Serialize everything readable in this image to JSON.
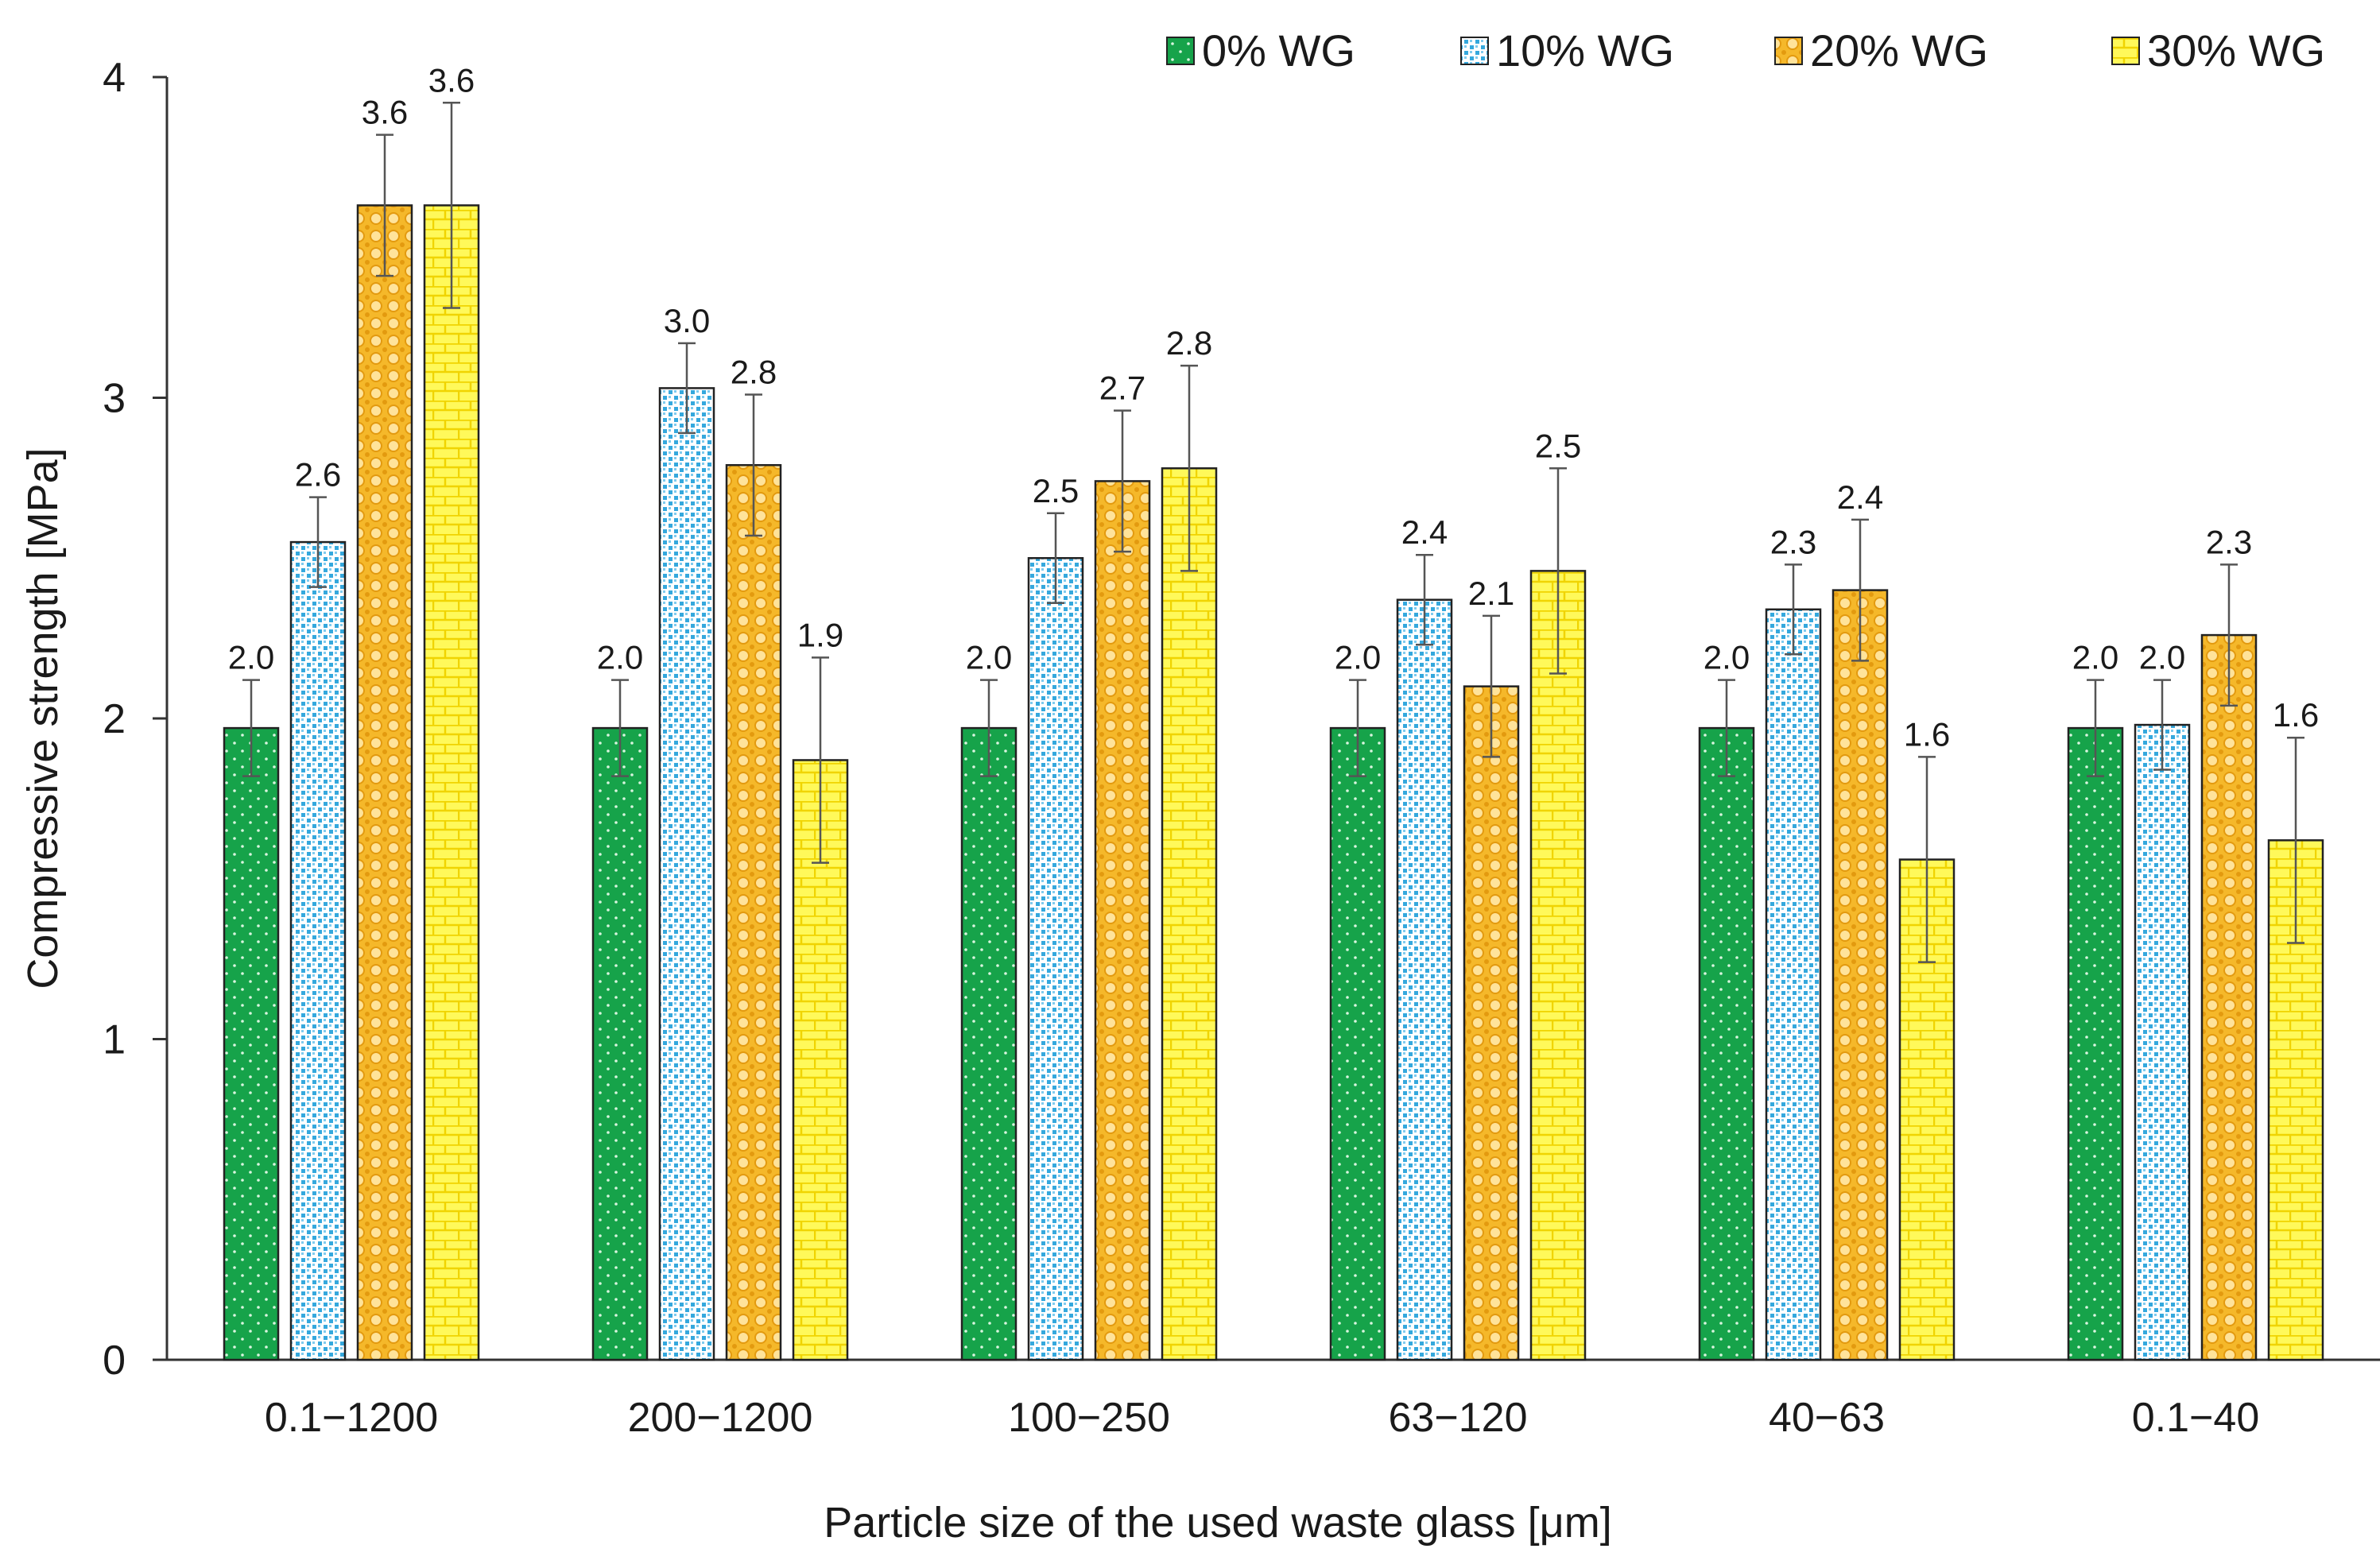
{
  "chart_data": {
    "type": "bar",
    "title": "",
    "xlabel": "Particle size of the used waste glass [μm]",
    "ylabel": "Compressive strength [MPa]",
    "ylim": [
      0,
      4
    ],
    "yticks": [
      0,
      1,
      2,
      3,
      4
    ],
    "grid": false,
    "legend_position": "top-right",
    "categories": [
      "0.1−1200",
      "200−1200",
      "100−250",
      "63−120",
      "40−63",
      "0.1−40"
    ],
    "series": [
      {
        "name": "0% WG",
        "color": "#16a34a",
        "pattern": "dots",
        "values": [
          1.97,
          1.97,
          1.97,
          1.97,
          1.97,
          1.97
        ],
        "errors": [
          0.15,
          0.15,
          0.15,
          0.15,
          0.15,
          0.15
        ],
        "labels": [
          "2.0",
          "2.0",
          "2.0",
          "2.0",
          "2.0",
          "2.0"
        ]
      },
      {
        "name": "10% WG",
        "color": "#4ab3e0",
        "pattern": "confetti",
        "values": [
          2.55,
          3.03,
          2.5,
          2.37,
          2.34,
          1.98
        ],
        "errors": [
          0.14,
          0.14,
          0.14,
          0.14,
          0.14,
          0.14
        ],
        "labels": [
          "2.6",
          "3.0",
          "2.5",
          "2.4",
          "2.3",
          "2.0"
        ]
      },
      {
        "name": "20% WG",
        "color": "#f2b320",
        "pattern": "circles",
        "values": [
          3.6,
          2.79,
          2.74,
          2.1,
          2.4,
          2.26
        ],
        "errors": [
          0.22,
          0.22,
          0.22,
          0.22,
          0.22,
          0.22
        ],
        "labels": [
          "3.6",
          "2.8",
          "2.7",
          "2.1",
          "2.4",
          "2.3"
        ]
      },
      {
        "name": "30% WG",
        "color": "#fff23a",
        "pattern": "bricks",
        "values": [
          3.6,
          1.87,
          2.78,
          2.46,
          1.56,
          1.62
        ],
        "errors": [
          0.32,
          0.32,
          0.32,
          0.32,
          0.32,
          0.32
        ],
        "labels": [
          "3.6",
          "1.9",
          "2.8",
          "2.5",
          "1.6",
          "1.6"
        ]
      }
    ]
  }
}
